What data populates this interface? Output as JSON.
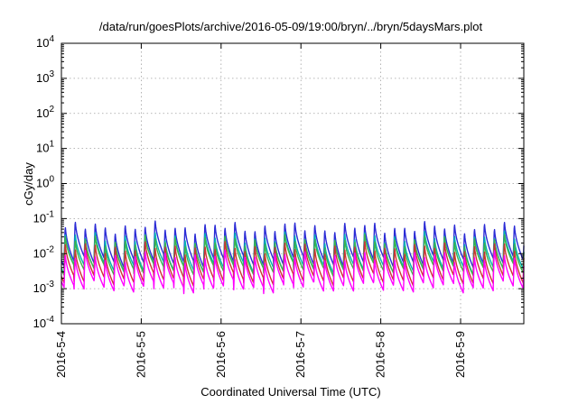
{
  "chart_data": {
    "type": "line",
    "title": "/data/run/goesPlots/archive/2016-05-09/19:00/bryn/../bryn/5daysMars.plot",
    "xlabel": "Coordinated Universal Time (UTC)",
    "ylabel": "cGy/day",
    "yscale": "log",
    "ylim": [
      0.0001,
      10000
    ],
    "xlim": [
      "2016-05-04 00:00",
      "2016-05-09 19:00"
    ],
    "grid": true,
    "legend": "none",
    "xticks": [
      "2016-5-4",
      "2016-5-5",
      "2016-5-6",
      "2016-5-7",
      "2016-5-8",
      "2016-5-9"
    ],
    "yticks": [
      {
        "base": "10",
        "exp": "-4"
      },
      {
        "base": "10",
        "exp": "-3"
      },
      {
        "base": "10",
        "exp": "-2"
      },
      {
        "base": "10",
        "exp": "-1"
      },
      {
        "base": "10",
        "exp": "0"
      },
      {
        "base": "10",
        "exp": "1"
      },
      {
        "base": "10",
        "exp": "2"
      },
      {
        "base": "10",
        "exp": "3"
      },
      {
        "base": "10",
        "exp": "4"
      }
    ],
    "series_pattern": {
      "description_of_shape": "sawtooth: sharp rise then decay, repeating",
      "period_hours": 3.0,
      "phase_hours": 0.8
    },
    "series": [
      {
        "color": "#2b2bd6",
        "peak": 0.07,
        "trough": 0.006
      },
      {
        "color": "#00b3b3",
        "peak": 0.035,
        "trough": 0.004
      },
      {
        "color": "#3cb44b",
        "peak": 0.028,
        "trough": 0.0035
      },
      {
        "color": "#cc3333",
        "peak": 0.018,
        "trough": 0.0018
      },
      {
        "color": "#ff00ff",
        "peak": 0.01,
        "trough": 0.0011
      }
    ]
  }
}
